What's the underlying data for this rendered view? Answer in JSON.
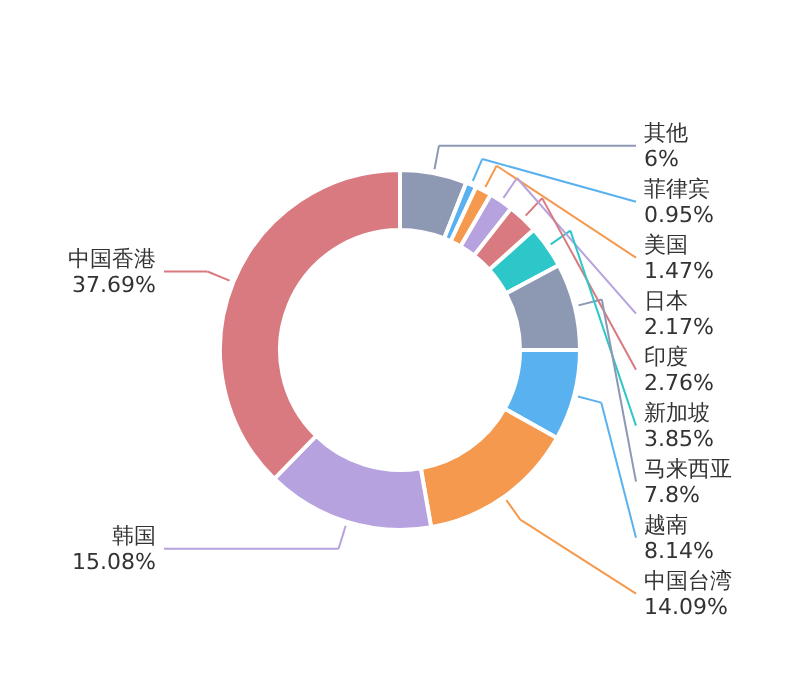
{
  "chart_data": {
    "type": "donut",
    "categories": [
      "其他",
      "菲律宾",
      "美国",
      "日本",
      "印度",
      "新加坡",
      "马来西亚",
      "越南",
      "中国台湾",
      "韩国",
      "中国香港"
    ],
    "values": [
      6,
      0.95,
      1.47,
      2.17,
      2.76,
      3.85,
      7.8,
      8.14,
      14.09,
      15.08,
      37.69
    ],
    "value_labels": [
      "6%",
      "0.95%",
      "1.47%",
      "2.17%",
      "2.76%",
      "3.85%",
      "7.8%",
      "8.14%",
      "14.09%",
      "15.08%",
      "37.69%"
    ],
    "colors": [
      "#8d98b3",
      "#5ab1ef",
      "#f5994e",
      "#b6a2de",
      "#d87a80",
      "#2ec7c9",
      "#8d98b3",
      "#5ab1ef",
      "#f5994e",
      "#b6a2de",
      "#d87a80"
    ]
  }
}
